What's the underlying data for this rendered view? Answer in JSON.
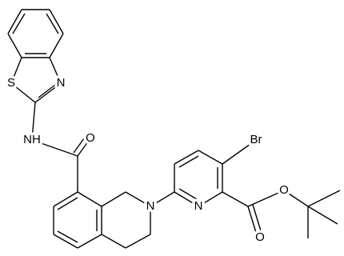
{
  "atoms": [
    {
      "label": "S"
    },
    {
      "label": "N"
    },
    {
      "label": "NH"
    },
    {
      "label": "O"
    },
    {
      "label": "N"
    },
    {
      "label": "N"
    },
    {
      "label": "Br"
    },
    {
      "label": "O"
    },
    {
      "label": "O"
    }
  ]
}
